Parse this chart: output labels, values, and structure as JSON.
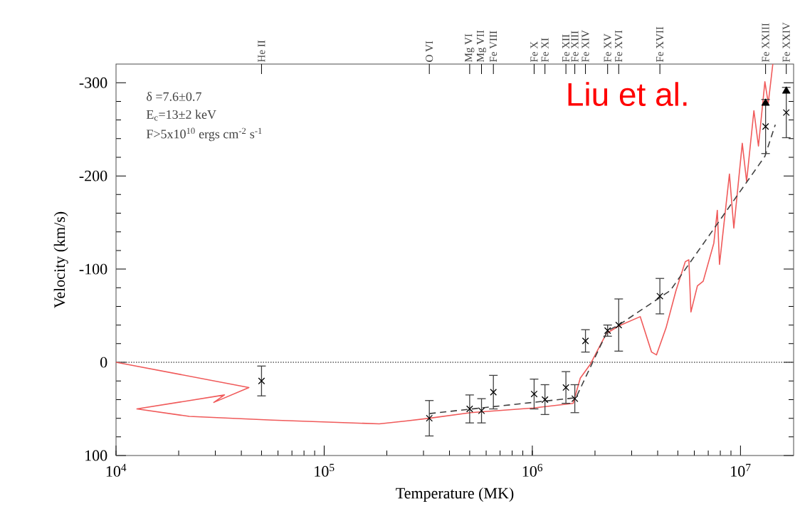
{
  "chart_data": {
    "type": "scatter",
    "xlabel": "Temperature (MK)",
    "ylabel": "Velocity (km/s)",
    "log": "x",
    "xlim": [
      10000,
      18000000
    ],
    "xticks": [
      {
        "value": 10000,
        "label": "10$^{4}$"
      },
      {
        "value": 100000,
        "label": "10$^{5}$"
      },
      {
        "value": 1000000,
        "label": "10$^{6}$"
      },
      {
        "value": 10000000,
        "label": "10$^{7}$"
      }
    ],
    "ylim": [
      100,
      -320
    ],
    "yticks": [
      -300,
      -200,
      -100,
      0,
      100
    ],
    "ref_lines": [
      {
        "axis": "y",
        "value": 0,
        "line_style": "dotted",
        "color": "#555555"
      }
    ],
    "annotations": [
      "δ =7.6±0.7",
      "E$_{c}$=13±2 keV",
      "F>5x10$^{10}$ ergs cm$^{-2}$ s$^{-1}$",
      "Liu et al.",
      "He II",
      "O VI",
      "Mg VI",
      "Mg VII",
      "Fe VIII",
      "Fe X",
      "Fe XI",
      "Fe XII",
      "Fe XIII",
      "Fe XIV",
      "Fe XV",
      "Fe XVI",
      "Fe XVII",
      "Fe XXIII",
      "Fe XXIV"
    ],
    "series": [
      {
        "type": "line",
        "color": "#f05a5a",
        "marker": "none",
        "line_style": "solid",
        "x": [
          10000,
          43500,
          29500,
          33200,
          12600,
          22500,
          56400,
          184000,
          247000,
          320000,
          506000,
          1010000,
          1570000,
          1700000,
          1900000,
          2270000,
          2600000,
          3300000,
          3740000,
          3950000,
          4390000,
          4900000,
          5430000,
          5650000,
          5780000,
          6210000,
          6620000,
          7450000,
          7740000,
          7930000,
          8850000,
          9290000,
          10200000,
          10700000,
          11600000,
          12200000,
          13100000,
          13600000,
          14300000
        ],
        "values": [
          0,
          27,
          43,
          35,
          50,
          58,
          62,
          66,
          63,
          60,
          54,
          49,
          44,
          17,
          2,
          -31,
          -39,
          -49,
          -11,
          -8,
          -37,
          -77,
          -108,
          -110,
          -54,
          -82,
          -87,
          -128,
          -163,
          -105,
          -202,
          -144,
          -235,
          -194,
          -270,
          -232,
          -301,
          -278,
          -320
        ]
      },
      {
        "type": "line",
        "color": "#404040",
        "marker": "none",
        "line_style": "dashed",
        "x": [
          320000,
          1620000,
          2300000,
          2600000,
          4600000,
          13100000,
          14700000
        ],
        "values": [
          55,
          38,
          -34,
          -40,
          -77,
          -221,
          -255
        ]
      },
      {
        "color": "#000000",
        "marker": "cross",
        "x": [
          50000,
          320000,
          500000,
          570000,
          650000,
          1020000,
          1150000,
          1450000,
          1600000,
          1800000,
          2300000,
          2600000,
          4100000,
          13200000,
          16600000
        ],
        "values": [
          20,
          60,
          50,
          52,
          32,
          34,
          40,
          27,
          39,
          -23,
          -34,
          -40,
          -71,
          -253,
          -268
        ],
        "errors": [
          16,
          19,
          15,
          13,
          18,
          16,
          16,
          17,
          15,
          12,
          6,
          28,
          19,
          29,
          27
        ]
      },
      {
        "color": "#000000",
        "marker": "triangle",
        "x": [
          13200000,
          16600000
        ],
        "values": [
          -278,
          -291
        ]
      }
    ]
  }
}
